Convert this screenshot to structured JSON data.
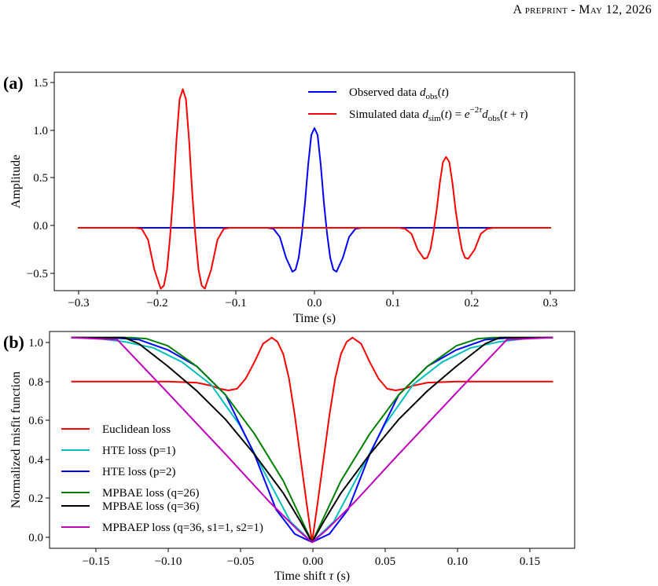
{
  "header": {
    "text": "A preprint - May 12, 2026"
  },
  "chart_data": [
    {
      "type": "line",
      "panel_label": "(a)",
      "xlabel": "Time (s)",
      "ylabel": "Amplitude",
      "xlim": [
        -0.33,
        0.33
      ],
      "ylim": [
        -0.63,
        1.56
      ],
      "xticks": [
        -0.3,
        -0.2,
        -0.1,
        0.0,
        0.1,
        0.2,
        0.3
      ],
      "xtick_labels": [
        "−0.3",
        "−0.2",
        "−0.1",
        "0.0",
        "0.1",
        "0.2",
        "0.3"
      ],
      "yticks": [
        -0.5,
        0.0,
        0.5,
        1.0,
        1.5
      ],
      "ytick_labels": [
        "−0.5",
        "0.0",
        "0.5",
        "1.0",
        "1.5"
      ],
      "grid": false,
      "legend_position": "top-right",
      "series": [
        {
          "name": "Observed data d_obs(t)",
          "color": "#0000ff",
          "x": [
            -0.3,
            -0.06,
            -0.052,
            -0.044,
            -0.036,
            -0.028,
            -0.024,
            -0.02,
            -0.016,
            -0.012,
            -0.008,
            -0.004,
            0.0,
            0.004,
            0.008,
            0.012,
            0.016,
            0.02,
            0.024,
            0.028,
            0.036,
            0.044,
            0.052,
            0.06,
            0.3
          ],
          "y": [
            0,
            0,
            -0.01,
            -0.09,
            -0.3,
            -0.44,
            -0.42,
            -0.3,
            -0.06,
            0.25,
            0.63,
            0.93,
            1.0,
            0.93,
            0.63,
            0.25,
            -0.06,
            -0.3,
            -0.42,
            -0.44,
            -0.3,
            -0.09,
            -0.01,
            0,
            0
          ]
        },
        {
          "name": "Simulated data d_sim(t) = e^(−2τ) d_obs(t+τ)",
          "color": "#ff0000",
          "x": [
            -0.3,
            -0.227,
            -0.219,
            -0.211,
            -0.203,
            -0.195,
            -0.191,
            -0.187,
            -0.183,
            -0.179,
            -0.175,
            -0.171,
            -0.167,
            -0.163,
            -0.159,
            -0.155,
            -0.151,
            -0.147,
            -0.143,
            -0.139,
            -0.131,
            -0.123,
            -0.115,
            -0.107,
            0.107,
            0.115,
            0.123,
            0.131,
            0.139,
            0.143,
            0.147,
            0.151,
            0.155,
            0.159,
            0.163,
            0.167,
            0.171,
            0.175,
            0.179,
            0.183,
            0.187,
            0.191,
            0.195,
            0.203,
            0.211,
            0.219,
            0.227,
            0.3
          ],
          "y": [
            0,
            0,
            -0.01,
            -0.12,
            -0.42,
            -0.61,
            -0.58,
            -0.42,
            -0.08,
            0.35,
            0.88,
            1.29,
            1.39,
            1.29,
            0.88,
            0.35,
            -0.08,
            -0.42,
            -0.58,
            -0.61,
            -0.42,
            -0.12,
            -0.01,
            0,
            0,
            -0.01,
            -0.06,
            -0.22,
            -0.31,
            -0.3,
            -0.22,
            -0.04,
            0.18,
            0.45,
            0.66,
            0.71,
            0.66,
            0.45,
            0.18,
            -0.04,
            -0.22,
            -0.3,
            -0.31,
            -0.22,
            -0.06,
            -0.01,
            0,
            0
          ]
        }
      ]
    },
    {
      "type": "line",
      "panel_label": "(b)",
      "xlabel": "Time shift τ (s)",
      "ylabel": "Normalized misfit function",
      "xlim": [
        -0.182,
        0.182
      ],
      "ylim": [
        -0.03,
        1.03
      ],
      "xticks": [
        -0.15,
        -0.1,
        -0.05,
        0.0,
        0.05,
        0.1,
        0.15
      ],
      "xtick_labels": [
        "−0.15",
        "−0.10",
        "−0.05",
        "0.00",
        "0.05",
        "0.10",
        "0.15"
      ],
      "yticks": [
        0.0,
        0.2,
        0.4,
        0.6,
        0.8,
        1.0
      ],
      "ytick_labels": [
        "0.0",
        "0.2",
        "0.4",
        "0.6",
        "0.8",
        "1.0"
      ],
      "grid": false,
      "legend_position": "lower-left",
      "series": [
        {
          "name": "Euclidean loss",
          "color": "#ff0000",
          "x": [
            -0.167,
            -0.1,
            -0.08,
            -0.07,
            -0.064,
            -0.058,
            -0.052,
            -0.046,
            -0.04,
            -0.034,
            -0.028,
            -0.024,
            -0.02,
            -0.016,
            -0.012,
            -0.008,
            -0.004,
            0.0,
            0.004,
            0.008,
            0.012,
            0.016,
            0.02,
            0.024,
            0.028,
            0.034,
            0.04,
            0.046,
            0.052,
            0.058,
            0.064,
            0.07,
            0.08,
            0.1,
            0.167
          ],
          "y": [
            0.785,
            0.785,
            0.78,
            0.765,
            0.75,
            0.742,
            0.75,
            0.8,
            0.88,
            0.97,
            1.0,
            0.98,
            0.92,
            0.8,
            0.62,
            0.41,
            0.2,
            0.0,
            0.2,
            0.41,
            0.62,
            0.8,
            0.92,
            0.98,
            1.0,
            0.97,
            0.88,
            0.8,
            0.75,
            0.742,
            0.75,
            0.765,
            0.78,
            0.785,
            0.785
          ]
        },
        {
          "name": "HTE loss (p=1)",
          "color": "#00bfbf",
          "x": [
            -0.167,
            -0.15,
            -0.13,
            -0.11,
            -0.09,
            -0.07,
            -0.05,
            -0.03,
            -0.015,
            0.0,
            0.015,
            0.03,
            0.05,
            0.07,
            0.09,
            0.11,
            0.13,
            0.15,
            0.167
          ],
          "y": [
            1.0,
            0.997,
            0.98,
            0.95,
            0.88,
            0.77,
            0.57,
            0.3,
            0.1,
            0.0,
            0.1,
            0.3,
            0.57,
            0.77,
            0.88,
            0.95,
            0.98,
            0.997,
            1.0
          ]
        },
        {
          "name": "HTE loss (p=2)",
          "color": "#0000ff",
          "x": [
            -0.167,
            -0.135,
            -0.12,
            -0.1,
            -0.08,
            -0.06,
            -0.04,
            -0.025,
            -0.012,
            0.0,
            0.012,
            0.025,
            0.04,
            0.06,
            0.08,
            0.1,
            0.12,
            0.135,
            0.167
          ],
          "y": [
            1.0,
            0.998,
            0.99,
            0.94,
            0.86,
            0.72,
            0.43,
            0.16,
            0.04,
            0.0,
            0.04,
            0.16,
            0.43,
            0.72,
            0.86,
            0.94,
            0.99,
            0.998,
            1.0
          ]
        },
        {
          "name": "MPBAE loss (q=26)",
          "color": "#008000",
          "x": [
            -0.167,
            -0.125,
            -0.115,
            -0.1,
            -0.08,
            -0.06,
            -0.04,
            -0.02,
            -0.008,
            0.0,
            0.008,
            0.02,
            0.04,
            0.06,
            0.08,
            0.1,
            0.115,
            0.125,
            0.167
          ],
          "y": [
            1.0,
            1.0,
            0.995,
            0.96,
            0.86,
            0.72,
            0.53,
            0.3,
            0.12,
            0.0,
            0.12,
            0.3,
            0.53,
            0.72,
            0.86,
            0.96,
            0.995,
            1.0,
            1.0
          ]
        },
        {
          "name": "MPBAE loss (q=36)",
          "color": "#000000",
          "x": [
            -0.167,
            -0.13,
            -0.12,
            -0.1,
            -0.08,
            -0.06,
            -0.04,
            -0.02,
            -0.008,
            0.0,
            0.008,
            0.02,
            0.04,
            0.06,
            0.08,
            0.1,
            0.12,
            0.13,
            0.167
          ],
          "y": [
            1.0,
            1.0,
            0.97,
            0.86,
            0.74,
            0.6,
            0.43,
            0.24,
            0.1,
            0.0,
            0.1,
            0.24,
            0.43,
            0.6,
            0.74,
            0.86,
            0.97,
            1.0,
            1.0
          ]
        },
        {
          "name": "MPBAEP loss (q=36, s1=1, s2=1)",
          "color": "#bf00bf",
          "x": [
            -0.167,
            -0.135,
            -0.1,
            -0.06,
            -0.03,
            -0.01,
            0.0,
            0.01,
            0.03,
            0.06,
            0.1,
            0.135,
            0.167
          ],
          "y": [
            1.0,
            0.99,
            0.73,
            0.43,
            0.2,
            0.06,
            0.0,
            0.06,
            0.2,
            0.43,
            0.73,
            0.99,
            1.0
          ]
        }
      ]
    }
  ]
}
